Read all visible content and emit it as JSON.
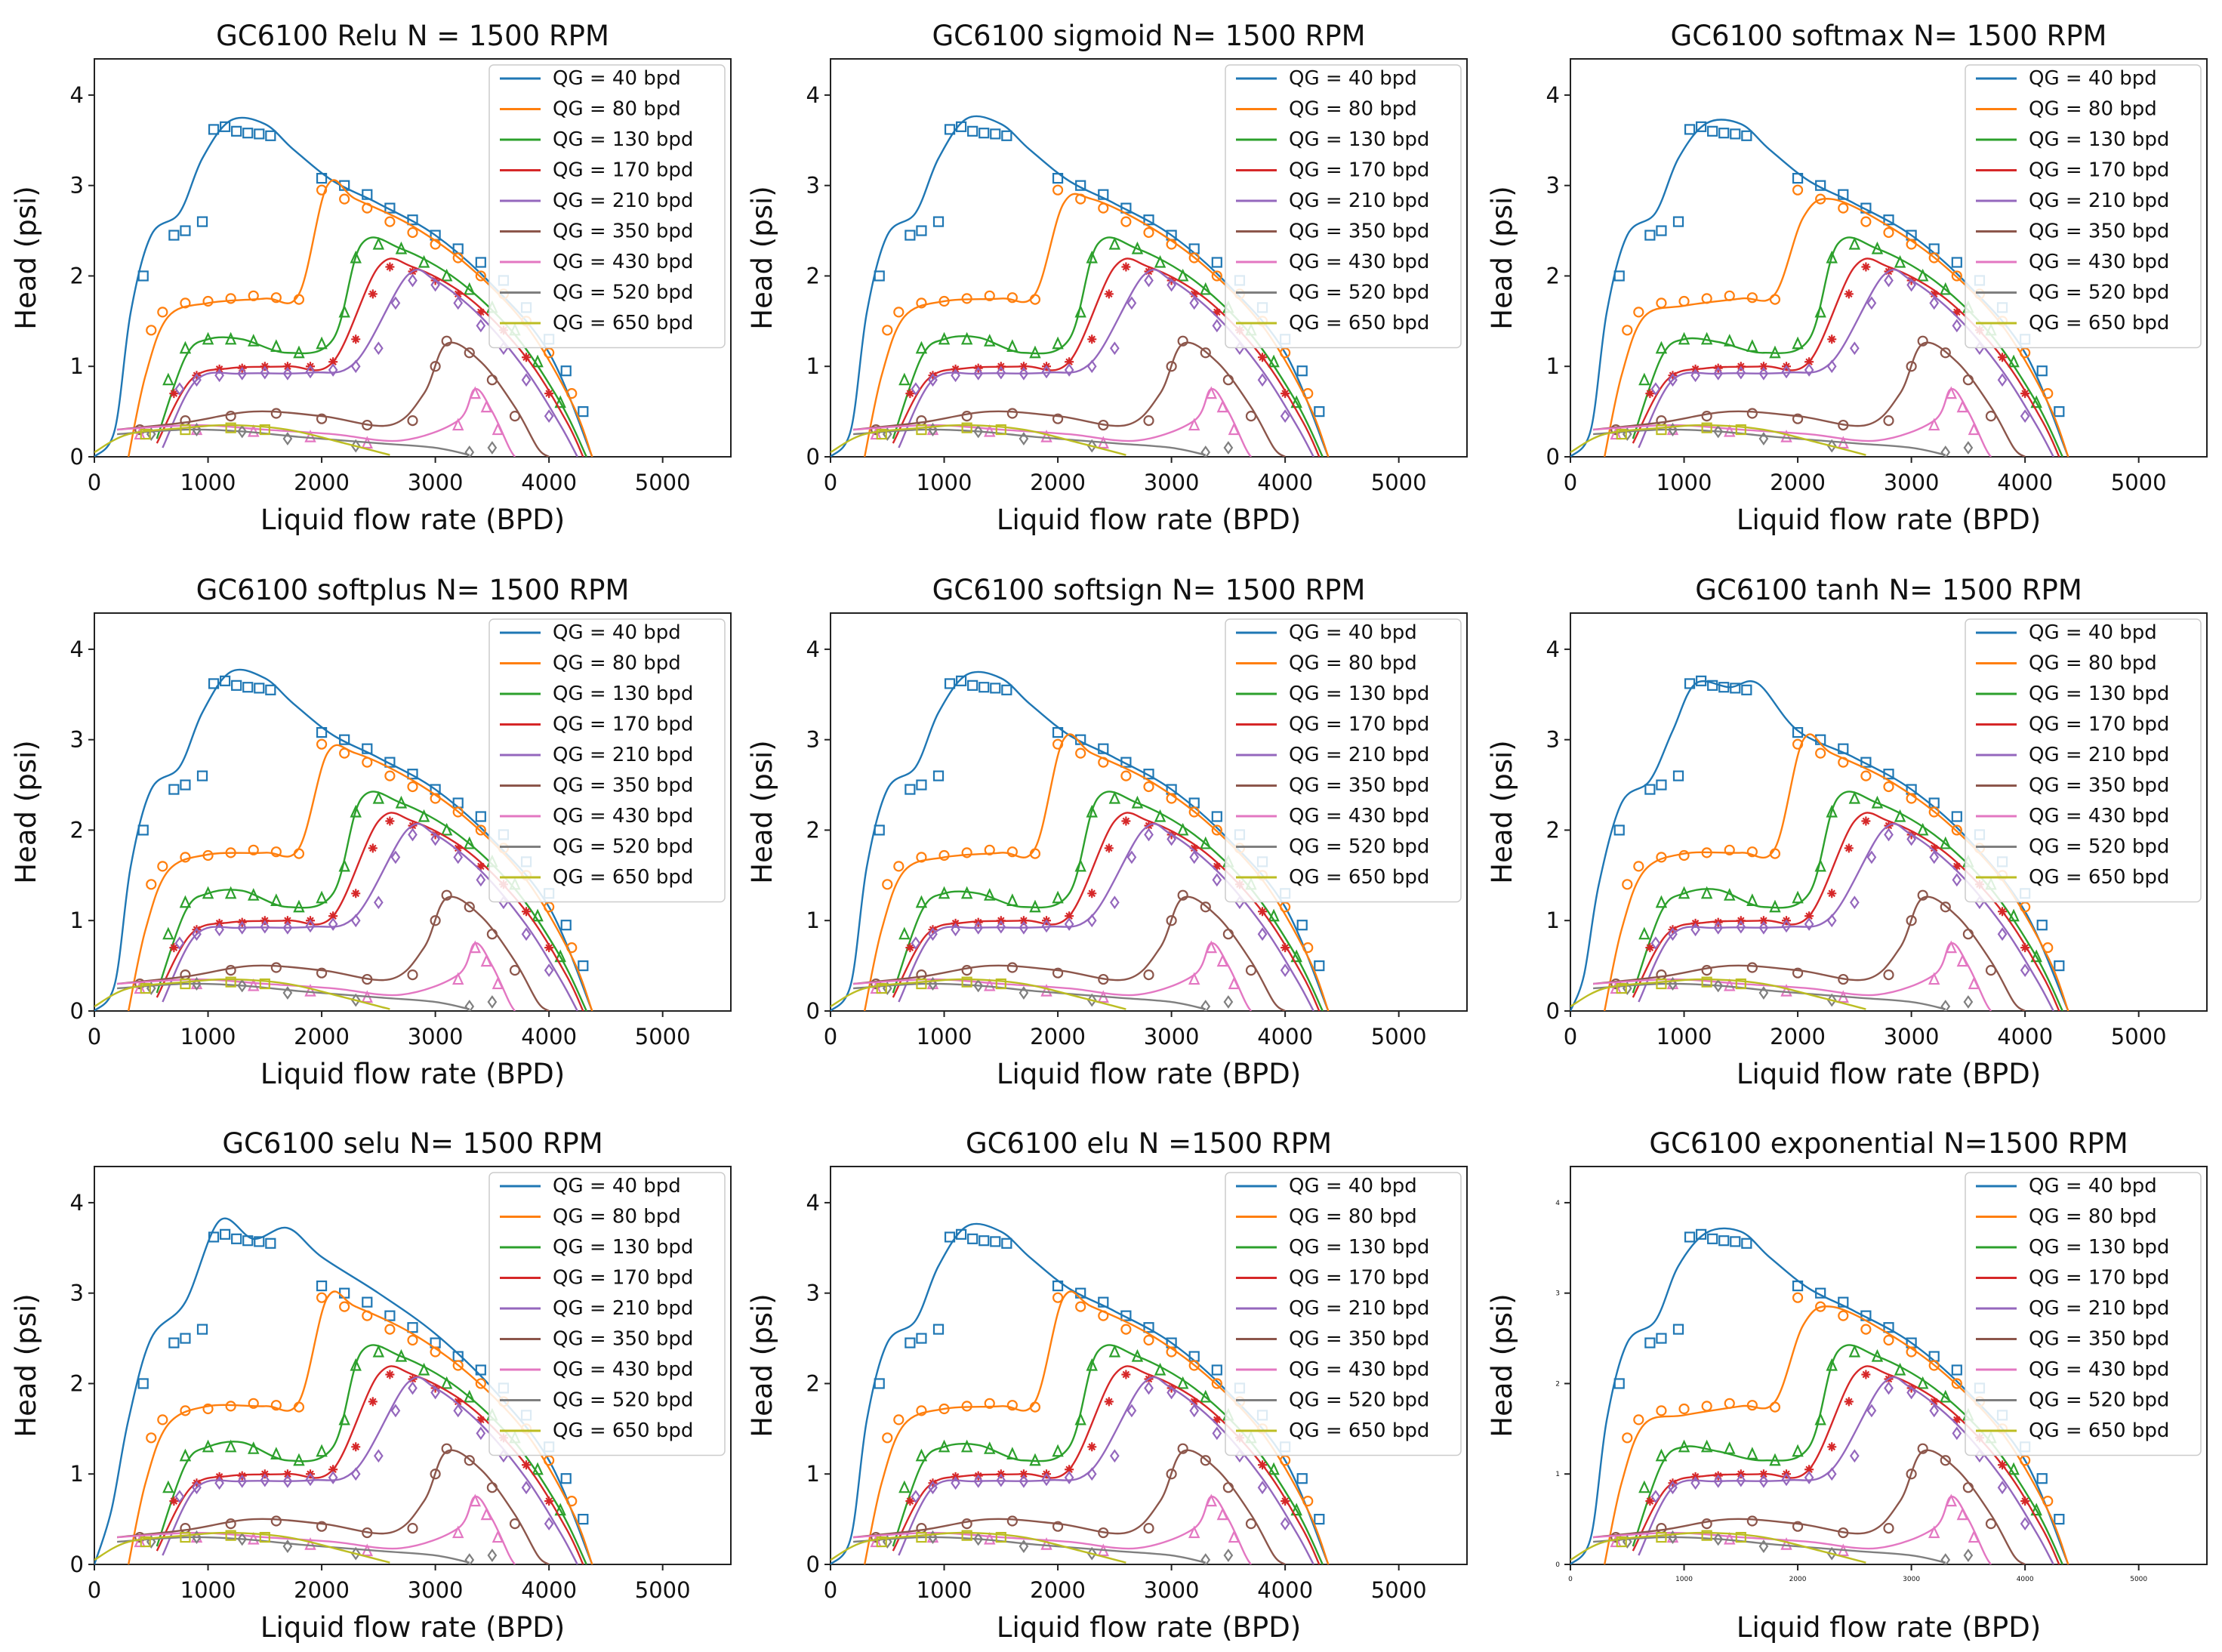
{
  "figure": {
    "xlabel": "Liquid flow rate (BPD)",
    "ylabel": "Head (psi)",
    "legend_placement": "top-right",
    "series_colors": [
      "#1f77b4",
      "#ff7f0e",
      "#2ca02c",
      "#d62728",
      "#9467bd",
      "#8c564b",
      "#e377c2",
      "#7f7f7f",
      "#bcbd22"
    ]
  },
  "chart_data": [
    {
      "type": "line",
      "title": "GC6100 Relu N = 1500 RPM",
      "variant": 0,
      "xlim": [
        0,
        5600
      ],
      "ylim": [
        0,
        4.4
      ],
      "xticks": [
        0,
        1000,
        2000,
        3000,
        4000,
        5000
      ],
      "yticks": [
        0,
        1,
        2,
        3,
        4
      ],
      "small_ticks": false,
      "series": [
        {
          "name": "QG = 40 bpd"
        },
        {
          "name": "QG = 80 bpd"
        },
        {
          "name": "QG = 130 bpd"
        },
        {
          "name": "QG = 170 bpd"
        },
        {
          "name": "QG = 210 bpd"
        },
        {
          "name": "QG = 350 bpd"
        },
        {
          "name": "QG = 430 bpd"
        },
        {
          "name": "QG = 520 bpd"
        },
        {
          "name": "QG = 650 bpd"
        }
      ]
    },
    {
      "type": "line",
      "title": "GC6100 sigmoid N= 1500 RPM",
      "variant": 1,
      "xlim": [
        0,
        5600
      ],
      "ylim": [
        0,
        4.4
      ],
      "xticks": [
        0,
        1000,
        2000,
        3000,
        4000,
        5000
      ],
      "yticks": [
        0,
        1,
        2,
        3,
        4
      ],
      "small_ticks": false,
      "series": [
        {
          "name": "QG = 40 bpd"
        },
        {
          "name": "QG = 80 bpd"
        },
        {
          "name": "QG = 130 bpd"
        },
        {
          "name": "QG = 170 bpd"
        },
        {
          "name": "QG = 210 bpd"
        },
        {
          "name": "QG = 350 bpd"
        },
        {
          "name": "QG = 430 bpd"
        },
        {
          "name": "QG = 520 bpd"
        },
        {
          "name": "QG = 650 bpd"
        }
      ]
    },
    {
      "type": "line",
      "title": "GC6100 softmax N= 1500 RPM",
      "variant": 2,
      "xlim": [
        0,
        5600
      ],
      "ylim": [
        0,
        4.4
      ],
      "xticks": [
        0,
        1000,
        2000,
        3000,
        4000,
        5000
      ],
      "yticks": [
        0,
        1,
        2,
        3,
        4
      ],
      "small_ticks": false,
      "series": [
        {
          "name": "QG = 40 bpd"
        },
        {
          "name": "QG = 80 bpd"
        },
        {
          "name": "QG = 130 bpd"
        },
        {
          "name": "QG = 170 bpd"
        },
        {
          "name": "QG = 210 bpd"
        },
        {
          "name": "QG = 350 bpd"
        },
        {
          "name": "QG = 430 bpd"
        },
        {
          "name": "QG = 520 bpd"
        },
        {
          "name": "QG = 650 bpd"
        }
      ]
    },
    {
      "type": "line",
      "title": "GC6100 softplus N= 1500 RPM",
      "variant": 3,
      "xlim": [
        0,
        5600
      ],
      "ylim": [
        0,
        4.4
      ],
      "xticks": [
        0,
        1000,
        2000,
        3000,
        4000,
        5000
      ],
      "yticks": [
        0,
        1,
        2,
        3,
        4
      ],
      "small_ticks": false,
      "series": [
        {
          "name": "QG = 40 bpd"
        },
        {
          "name": "QG = 80 bpd"
        },
        {
          "name": "QG = 130 bpd"
        },
        {
          "name": "QG = 170 bpd"
        },
        {
          "name": "QG = 210 bpd"
        },
        {
          "name": "QG = 350 bpd"
        },
        {
          "name": "QG = 430 bpd"
        },
        {
          "name": "QG = 520 bpd"
        },
        {
          "name": "QG = 650 bpd"
        }
      ]
    },
    {
      "type": "line",
      "title": "GC6100 softsign N= 1500 RPM",
      "variant": 4,
      "xlim": [
        0,
        5600
      ],
      "ylim": [
        0,
        4.4
      ],
      "xticks": [
        0,
        1000,
        2000,
        3000,
        4000,
        5000
      ],
      "yticks": [
        0,
        1,
        2,
        3,
        4
      ],
      "small_ticks": false,
      "series": [
        {
          "name": "QG = 40 bpd"
        },
        {
          "name": "QG = 80 bpd"
        },
        {
          "name": "QG = 130 bpd"
        },
        {
          "name": "QG = 170 bpd"
        },
        {
          "name": "QG = 210 bpd"
        },
        {
          "name": "QG = 350 bpd"
        },
        {
          "name": "QG = 430 bpd"
        },
        {
          "name": "QG = 520 bpd"
        },
        {
          "name": "QG = 650 bpd"
        }
      ]
    },
    {
      "type": "line",
      "title": "GC6100 tanh N= 1500 RPM",
      "variant": 5,
      "xlim": [
        0,
        5600
      ],
      "ylim": [
        0,
        4.4
      ],
      "xticks": [
        0,
        1000,
        2000,
        3000,
        4000,
        5000
      ],
      "yticks": [
        0,
        1,
        2,
        3,
        4
      ],
      "small_ticks": false,
      "series": [
        {
          "name": "QG = 40 bpd"
        },
        {
          "name": "QG = 80 bpd"
        },
        {
          "name": "QG = 130 bpd"
        },
        {
          "name": "QG = 170 bpd"
        },
        {
          "name": "QG = 210 bpd"
        },
        {
          "name": "QG = 350 bpd"
        },
        {
          "name": "QG = 430 bpd"
        },
        {
          "name": "QG = 520 bpd"
        },
        {
          "name": "QG = 650 bpd"
        }
      ]
    },
    {
      "type": "line",
      "title": "GC6100 selu N= 1500 RPM",
      "variant": 6,
      "xlim": [
        0,
        5600
      ],
      "ylim": [
        0,
        4.4
      ],
      "xticks": [
        0,
        1000,
        2000,
        3000,
        4000,
        5000
      ],
      "yticks": [
        0,
        1,
        2,
        3,
        4
      ],
      "small_ticks": false,
      "series": [
        {
          "name": "QG = 40 bpd"
        },
        {
          "name": "QG = 80 bpd"
        },
        {
          "name": "QG = 130 bpd"
        },
        {
          "name": "QG = 170 bpd"
        },
        {
          "name": "QG = 210 bpd"
        },
        {
          "name": "QG = 350 bpd"
        },
        {
          "name": "QG = 430 bpd"
        },
        {
          "name": "QG = 520 bpd"
        },
        {
          "name": "QG = 650 bpd"
        }
      ]
    },
    {
      "type": "line",
      "title": "GC6100 elu N =1500 RPM",
      "variant": 7,
      "xlim": [
        0,
        5600
      ],
      "ylim": [
        0,
        4.4
      ],
      "xticks": [
        0,
        1000,
        2000,
        3000,
        4000,
        5000
      ],
      "yticks": [
        0,
        1,
        2,
        3,
        4
      ],
      "small_ticks": false,
      "series": [
        {
          "name": "QG = 40 bpd"
        },
        {
          "name": "QG = 80 bpd"
        },
        {
          "name": "QG = 130 bpd"
        },
        {
          "name": "QG = 170 bpd"
        },
        {
          "name": "QG = 210 bpd"
        },
        {
          "name": "QG = 350 bpd"
        },
        {
          "name": "QG = 430 bpd"
        },
        {
          "name": "QG = 520 bpd"
        },
        {
          "name": "QG = 650 bpd"
        }
      ]
    },
    {
      "type": "line",
      "title": "GC6100 exponential N=1500 RPM",
      "variant": 8,
      "xlim": [
        0,
        5600
      ],
      "ylim": [
        0,
        4.4
      ],
      "xticks": [
        0,
        1000,
        2000,
        3000,
        4000,
        5000
      ],
      "yticks": [
        0,
        1,
        2,
        3,
        4
      ],
      "small_ticks": true,
      "series": [
        {
          "name": "QG = 40 bpd"
        },
        {
          "name": "QG = 80 bpd"
        },
        {
          "name": "QG = 130 bpd"
        },
        {
          "name": "QG = 170 bpd"
        },
        {
          "name": "QG = 210 bpd"
        },
        {
          "name": "QG = 350 bpd"
        },
        {
          "name": "QG = 430 bpd"
        },
        {
          "name": "QG = 520 bpd"
        },
        {
          "name": "QG = 650 bpd"
        }
      ]
    }
  ]
}
